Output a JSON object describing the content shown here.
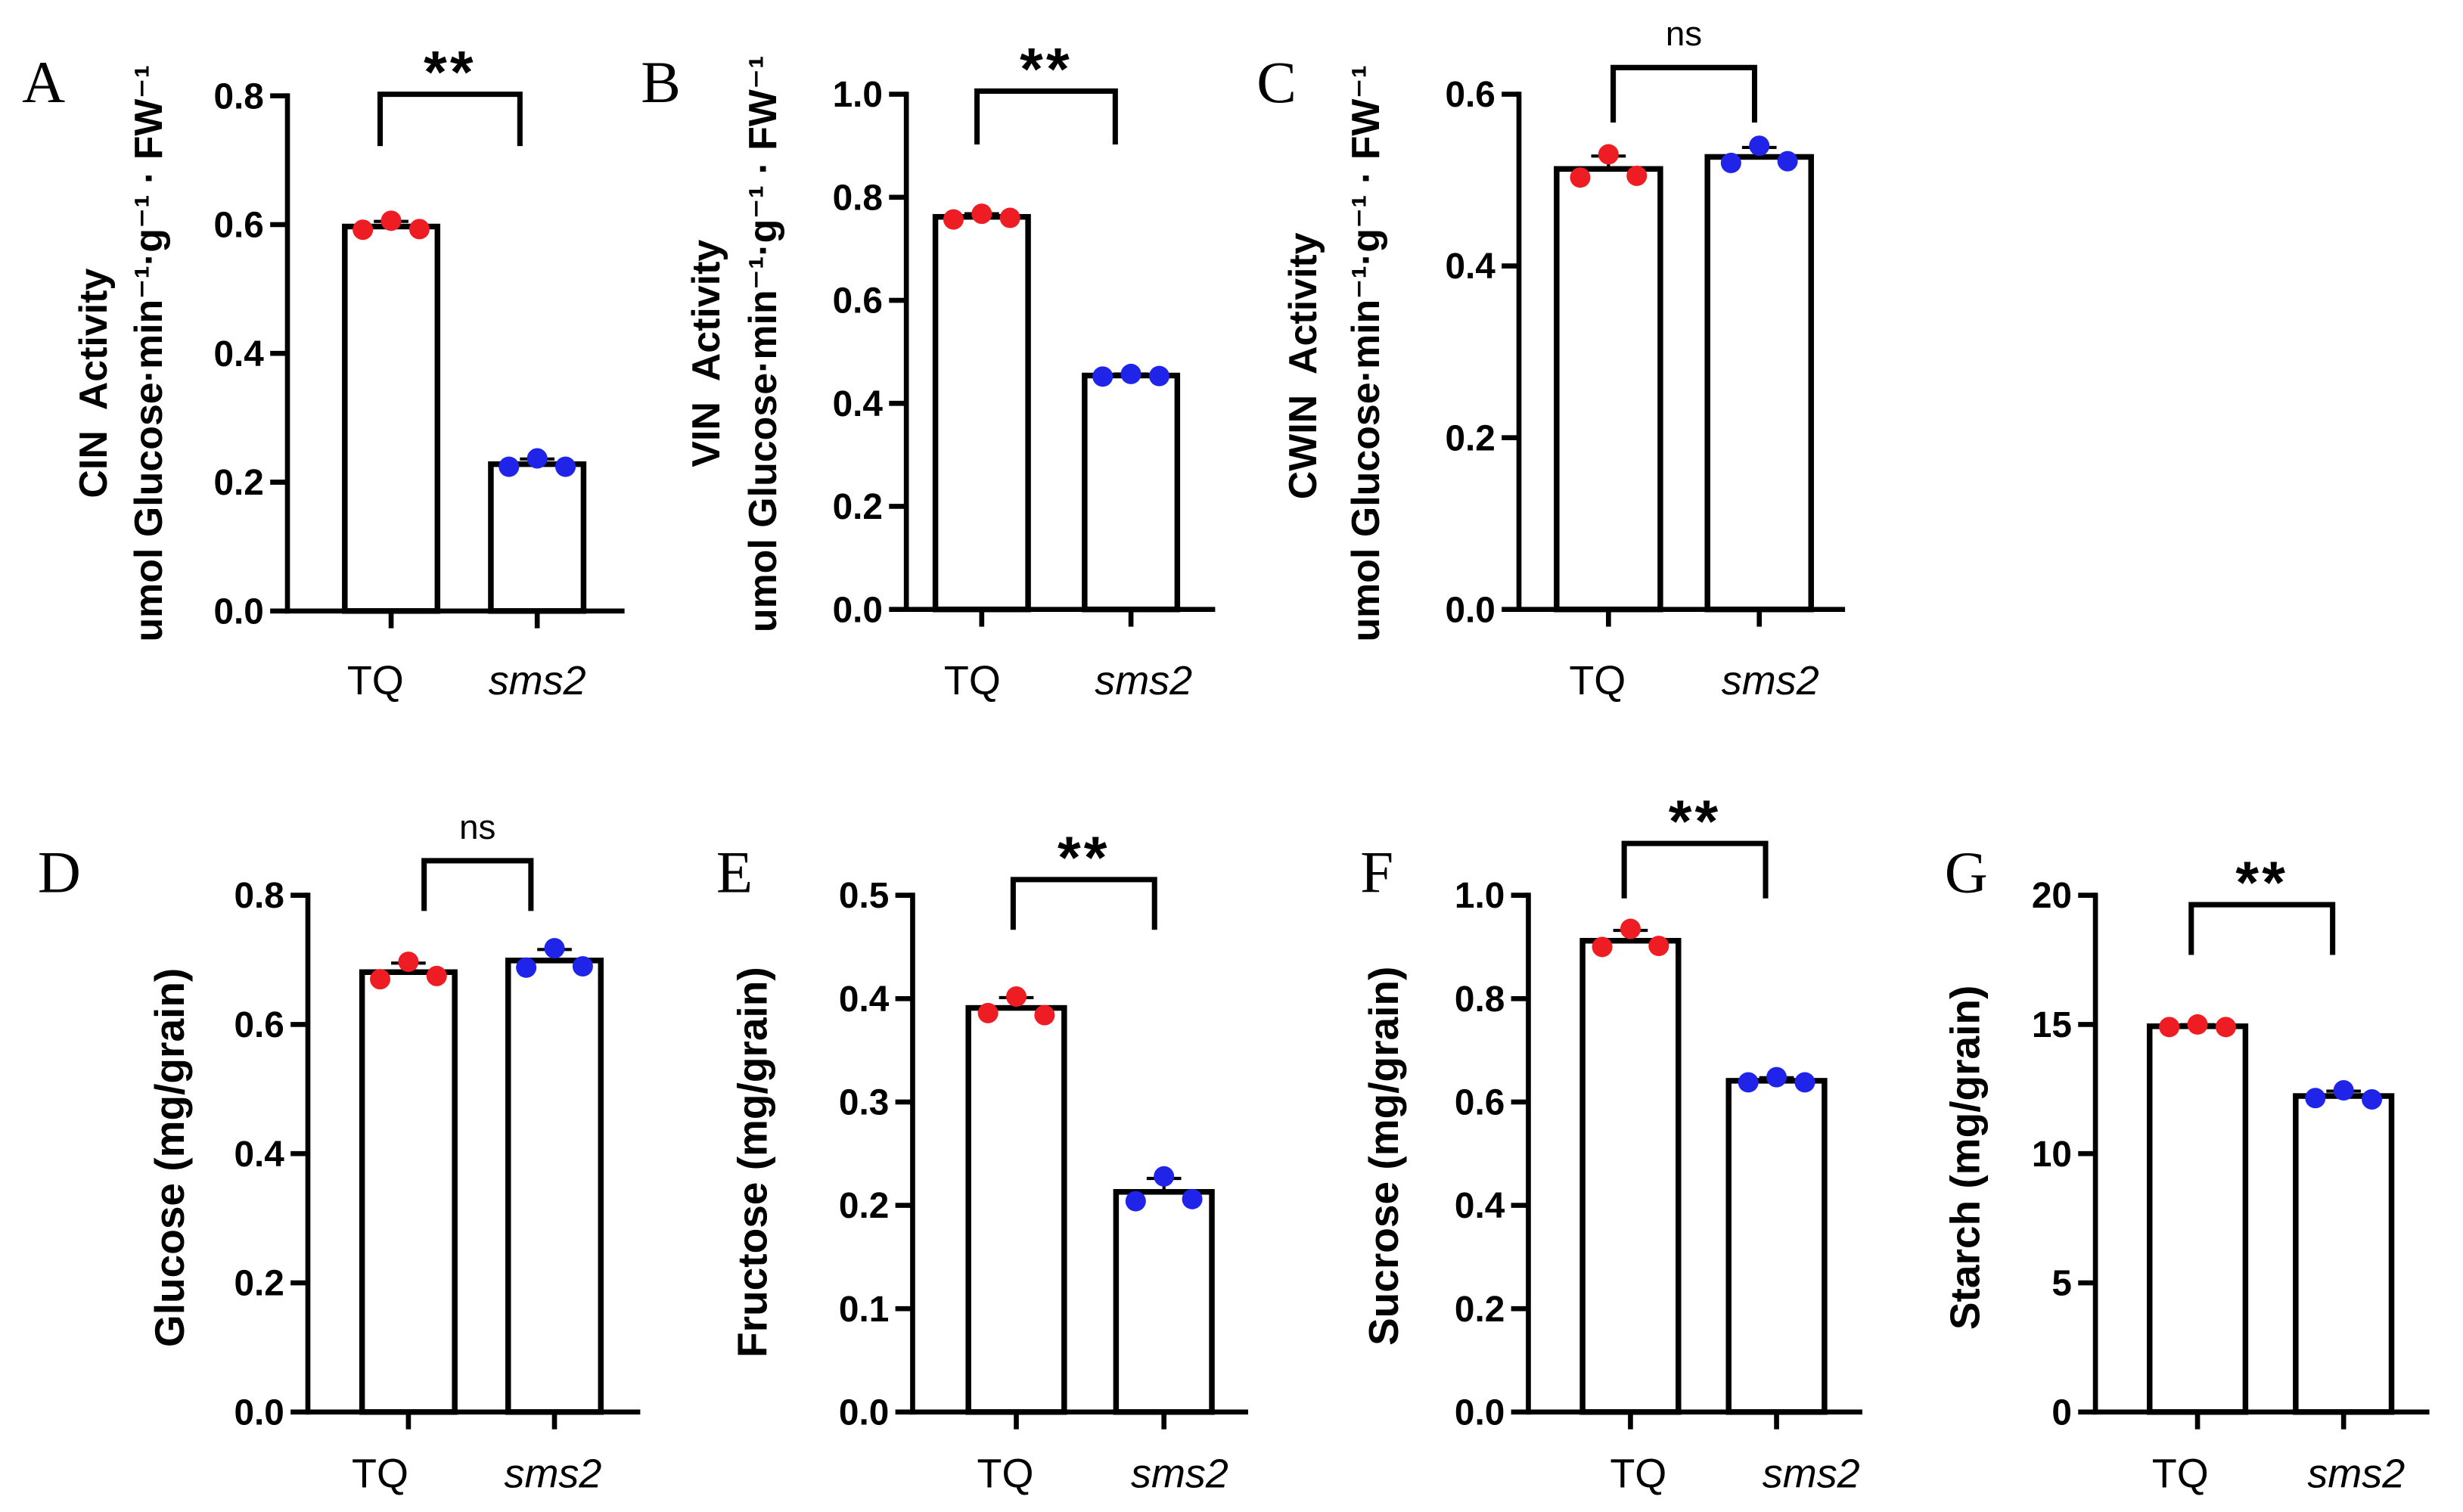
{
  "chart_data": [
    {
      "panel": "A",
      "type": "bar",
      "categories": [
        "TQ",
        "sms2"
      ],
      "values": [
        0.597,
        0.228
      ],
      "error": [
        0.008,
        0.008
      ],
      "points": [
        [
          0.592,
          0.606,
          0.593
        ],
        [
          0.224,
          0.237,
          0.224
        ]
      ],
      "ylabel": [
        "CIN  Activity",
        "umol Glucose·min⁻¹·g⁻¹ · FW⁻¹"
      ],
      "ylim": [
        0,
        0.8
      ],
      "yticks": [
        0,
        0.2,
        0.4,
        0.6,
        0.8
      ],
      "ytick_labels": [
        "0.0",
        "0.2",
        "0.4",
        "0.6",
        "0.8"
      ],
      "significance": "**",
      "point_colors": [
        "#ee1d23",
        "#1f24e8"
      ]
    },
    {
      "panel": "B",
      "type": "bar",
      "categories": [
        "TQ",
        "sms2"
      ],
      "values": [
        0.762,
        0.454
      ],
      "error": [
        0.006,
        0.003
      ],
      "points": [
        [
          0.757,
          0.768,
          0.76
        ],
        [
          0.452,
          0.457,
          0.453
        ]
      ],
      "ylabel": [
        "VIN  Activity",
        "umol Glucose·min⁻¹·g⁻¹ · FW⁻¹"
      ],
      "ylim": [
        0,
        1.0
      ],
      "yticks": [
        0,
        0.2,
        0.4,
        0.6,
        0.8,
        1.0
      ],
      "ytick_labels": [
        "0.0",
        "0.2",
        "0.4",
        "0.6",
        "0.8",
        "1.0"
      ],
      "significance": "**",
      "point_colors": [
        "#ee1d23",
        "#1f24e8"
      ]
    },
    {
      "panel": "C",
      "type": "bar",
      "categories": [
        "TQ",
        "sms2"
      ],
      "values": [
        0.513,
        0.527
      ],
      "error": [
        0.015,
        0.011
      ],
      "points": [
        [
          0.503,
          0.53,
          0.505
        ],
        [
          0.52,
          0.54,
          0.522
        ]
      ],
      "ylabel": [
        "CWIN  Activity",
        "umol Glucose·min⁻¹·g⁻¹ · FW⁻¹"
      ],
      "ylim": [
        0,
        0.6
      ],
      "yticks": [
        0,
        0.2,
        0.4,
        0.6
      ],
      "ytick_labels": [
        "0.0",
        "0.2",
        "0.4",
        "0.6"
      ],
      "significance": "ns",
      "point_colors": [
        "#ee1d23",
        "#1f24e8"
      ]
    },
    {
      "panel": "D",
      "type": "bar",
      "categories": [
        "TQ",
        "sms2"
      ],
      "values": [
        0.681,
        0.699
      ],
      "error": [
        0.014,
        0.017
      ],
      "points": [
        [
          0.67,
          0.697,
          0.675
        ],
        [
          0.688,
          0.718,
          0.69
        ]
      ],
      "ylabel": [
        "Glucose (mg/grain)"
      ],
      "ylim": [
        0,
        0.8
      ],
      "yticks": [
        0,
        0.2,
        0.4,
        0.6,
        0.8
      ],
      "ytick_labels": [
        "0.0",
        "0.2",
        "0.4",
        "0.6",
        "0.8"
      ],
      "significance": "ns",
      "point_colors": [
        "#ee1d23",
        "#1f24e8"
      ]
    },
    {
      "panel": "E",
      "type": "bar",
      "categories": [
        "TQ",
        "sms2"
      ],
      "values": [
        0.391,
        0.213
      ],
      "error": [
        0.01,
        0.013
      ],
      "points": [
        [
          0.386,
          0.402,
          0.384
        ],
        [
          0.204,
          0.228,
          0.206
        ]
      ],
      "ylabel": [
        "Fructose (mg/grain)"
      ],
      "ylim": [
        0,
        0.5
      ],
      "yticks": [
        0,
        0.1,
        0.2,
        0.3,
        0.4,
        0.5
      ],
      "ytick_labels": [
        "0.0",
        "0.1",
        "0.2",
        "0.3",
        "0.4",
        "0.5"
      ],
      "significance": "**",
      "point_colors": [
        "#ee1d23",
        "#1f24e8"
      ]
    },
    {
      "panel": "F",
      "type": "bar",
      "categories": [
        "TQ",
        "sms2"
      ],
      "values": [
        0.912,
        0.641
      ],
      "error": [
        0.02,
        0.006
      ],
      "points": [
        [
          0.9,
          0.935,
          0.902
        ],
        [
          0.638,
          0.648,
          0.638
        ]
      ],
      "ylabel": [
        "Sucrose (mg/grain)"
      ],
      "ylim": [
        0,
        1.0
      ],
      "yticks": [
        0,
        0.2,
        0.4,
        0.6,
        0.8,
        1.0
      ],
      "ytick_labels": [
        "0.0",
        "0.2",
        "0.4",
        "0.6",
        "0.8",
        "1.0"
      ],
      "significance": "**",
      "point_colors": [
        "#ee1d23",
        "#1f24e8"
      ]
    },
    {
      "panel": "G",
      "type": "bar",
      "categories": [
        "TQ",
        "sms2"
      ],
      "values": [
        14.93,
        12.23
      ],
      "error": [
        0.06,
        0.19
      ],
      "points": [
        [
          14.9,
          15.0,
          14.9
        ],
        [
          12.15,
          12.45,
          12.1
        ]
      ],
      "ylabel": [
        "Starch (mg/grain)"
      ],
      "ylim": [
        0,
        20
      ],
      "yticks": [
        0,
        5,
        10,
        15,
        20
      ],
      "ytick_labels": [
        "0",
        "5",
        "10",
        "15",
        "20"
      ],
      "significance": "**",
      "point_colors": [
        "#ee1d23",
        "#1f24e8"
      ]
    }
  ]
}
